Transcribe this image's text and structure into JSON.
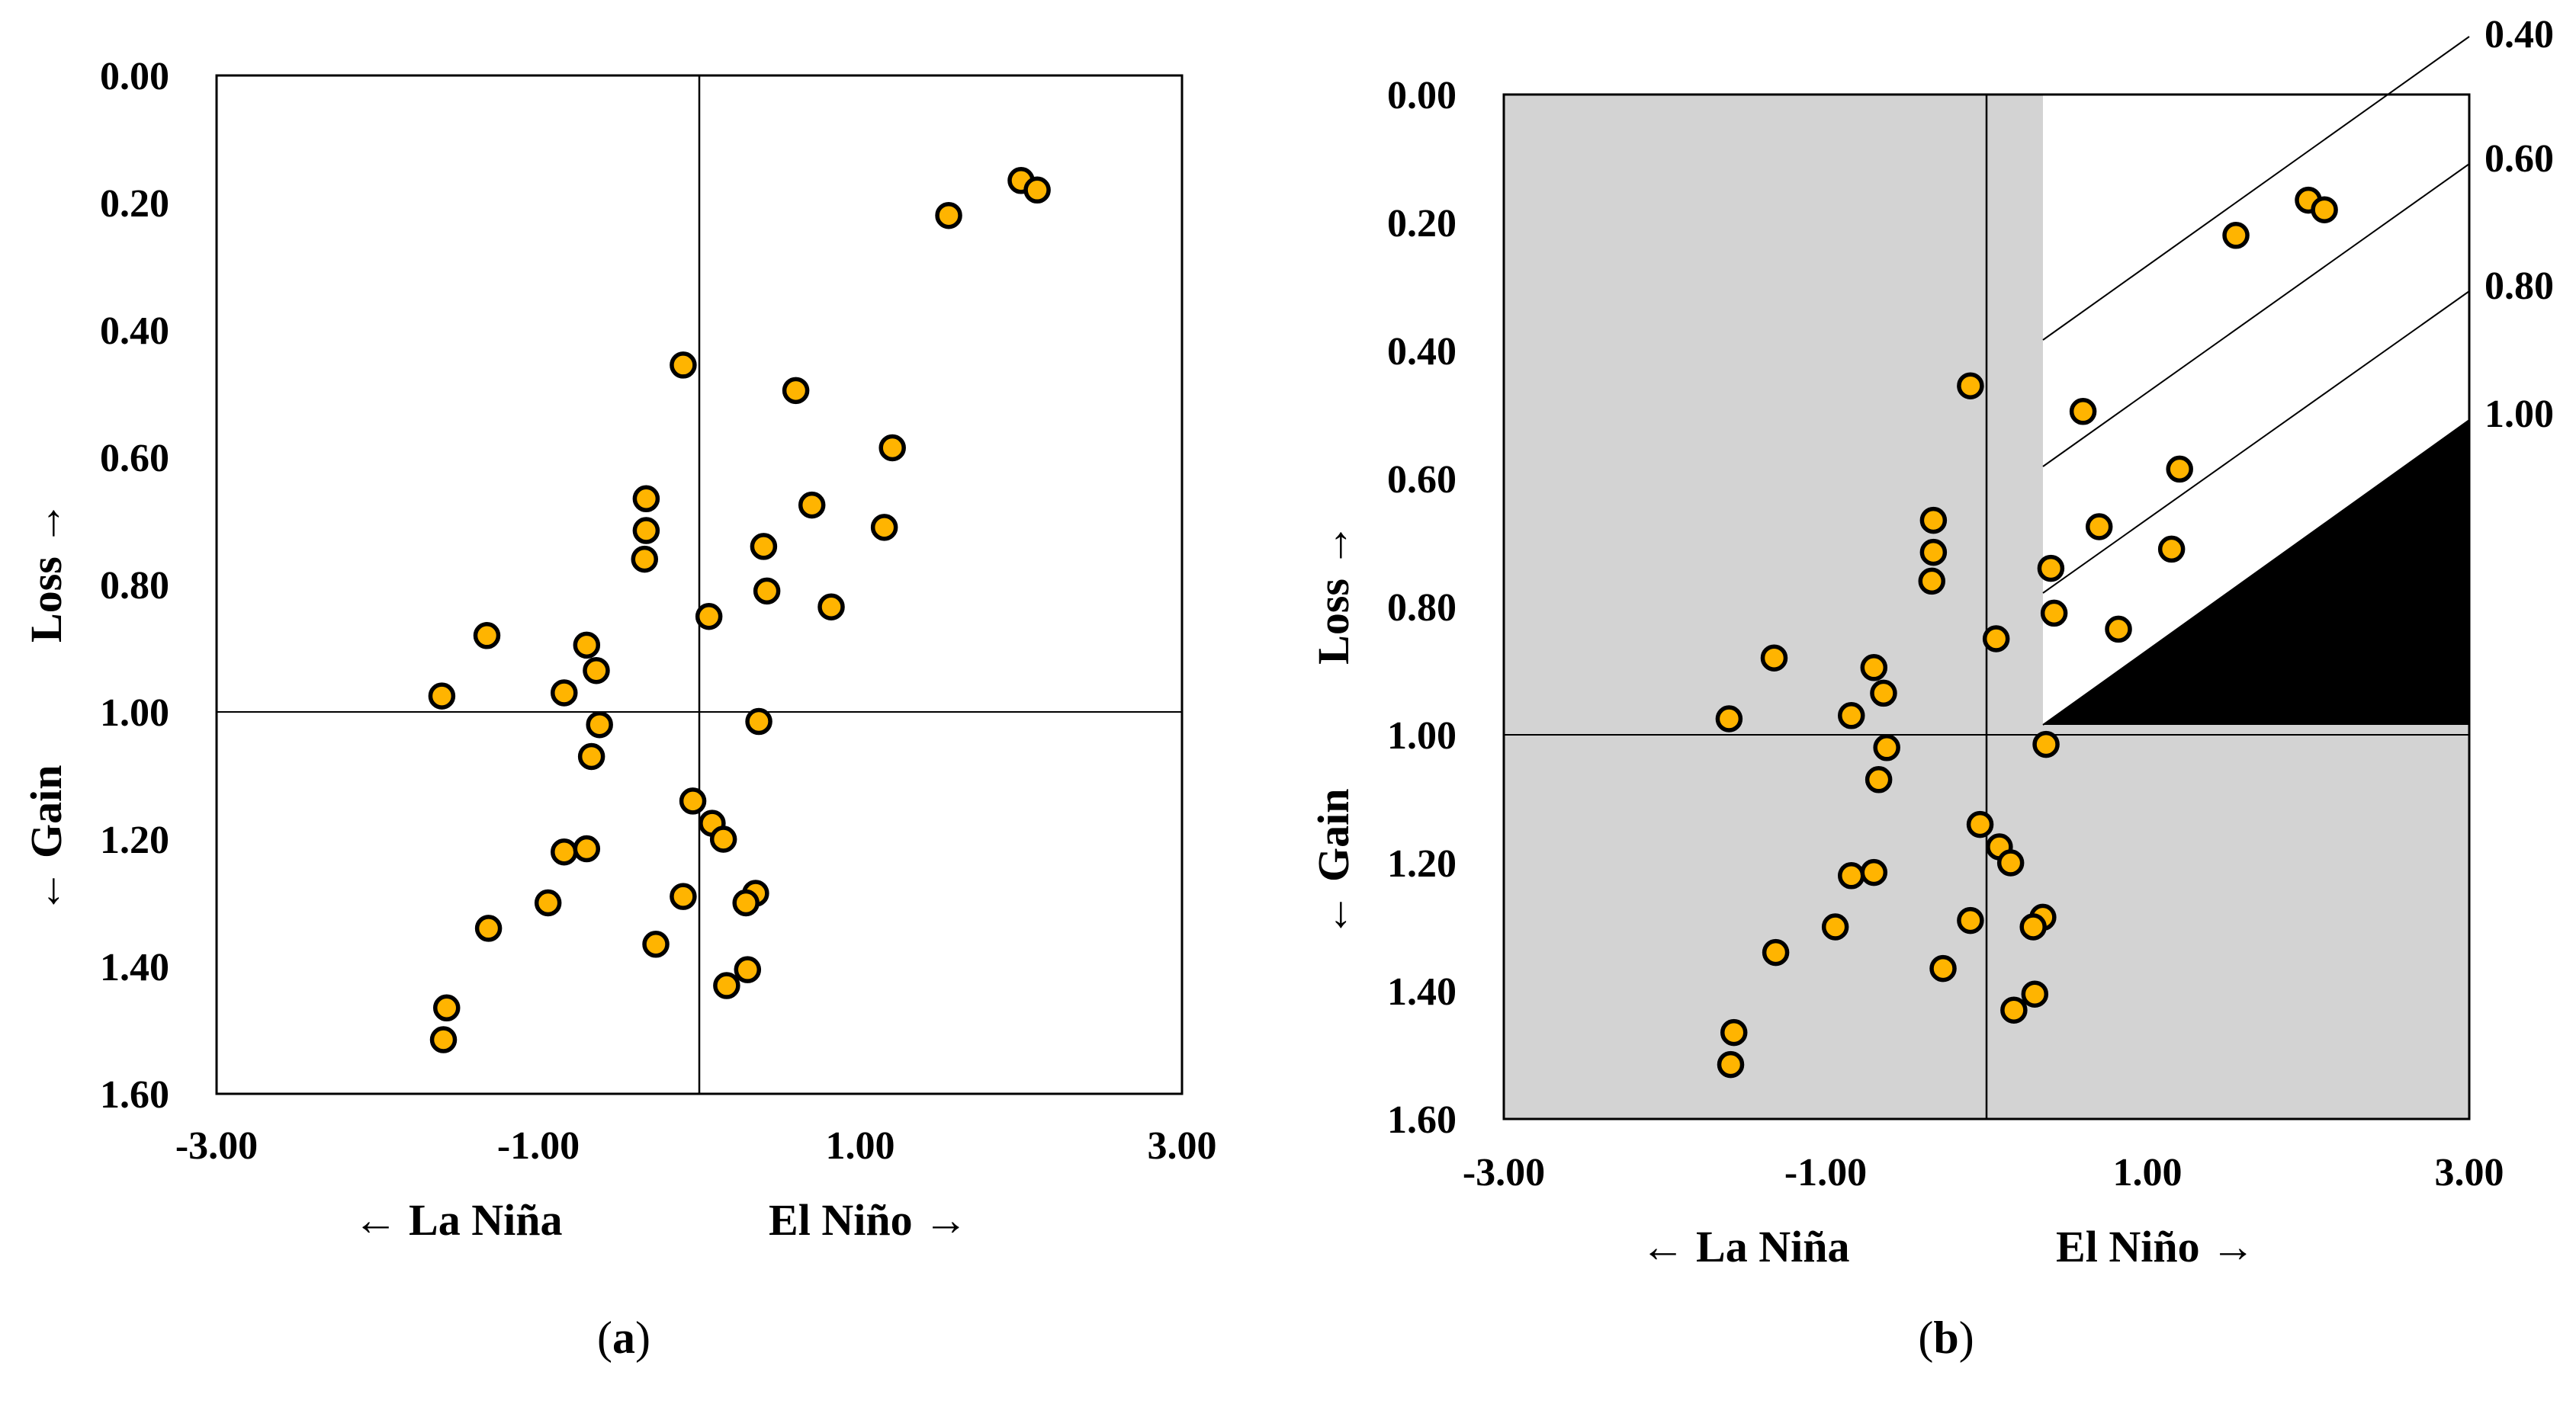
{
  "chart_data": [
    {
      "type": "scatter",
      "panel": "(a)",
      "panel_open": "(",
      "panel_letter": "a",
      "panel_close": ")",
      "xlabel_left": "← La Niña",
      "xlabel_right": "El Niño →",
      "ylabel_loss": "Loss →",
      "ylabel_gain": "← Gain",
      "xlim": [
        -3,
        3
      ],
      "ylim": [
        0,
        1.6
      ],
      "y_reversed": true,
      "xticks": [
        -3,
        -1,
        1,
        3
      ],
      "xtick_labels": [
        "-3.00",
        "-1.00",
        "1.00",
        "3.00"
      ],
      "yticks": [
        0,
        0.2,
        0.4,
        0.6,
        0.8,
        1.0,
        1.2,
        1.4,
        1.6
      ],
      "ytick_labels": [
        "0.00",
        "0.20",
        "0.40",
        "0.60",
        "0.80",
        "1.00",
        "1.20",
        "1.40",
        "1.60"
      ],
      "reference_lines": {
        "x": 0,
        "y": 1.0
      },
      "marker_color": "#FFB400",
      "marker_edge": "#000000",
      "points": [
        [
          2.0,
          0.165
        ],
        [
          2.1,
          0.18
        ],
        [
          1.55,
          0.22
        ],
        [
          0.6,
          0.495
        ],
        [
          -0.1,
          0.455
        ],
        [
          1.2,
          0.585
        ],
        [
          0.7,
          0.675
        ],
        [
          1.15,
          0.71
        ],
        [
          -0.33,
          0.665
        ],
        [
          -0.33,
          0.715
        ],
        [
          0.4,
          0.74
        ],
        [
          -0.34,
          0.76
        ],
        [
          0.42,
          0.81
        ],
        [
          0.82,
          0.835
        ],
        [
          0.06,
          0.85
        ],
        [
          -1.32,
          0.88
        ],
        [
          -0.7,
          0.895
        ],
        [
          -0.64,
          0.935
        ],
        [
          -0.84,
          0.97
        ],
        [
          -1.6,
          0.975
        ],
        [
          -0.62,
          1.02
        ],
        [
          0.37,
          1.015
        ],
        [
          -0.67,
          1.07
        ],
        [
          -0.04,
          1.14
        ],
        [
          0.08,
          1.175
        ],
        [
          0.15,
          1.2
        ],
        [
          -0.84,
          1.22
        ],
        [
          -0.7,
          1.215
        ],
        [
          -0.1,
          1.29
        ],
        [
          -0.94,
          1.3
        ],
        [
          0.35,
          1.285
        ],
        [
          0.29,
          1.3
        ],
        [
          -1.31,
          1.34
        ],
        [
          -0.27,
          1.365
        ],
        [
          0.3,
          1.405
        ],
        [
          0.17,
          1.43
        ],
        [
          -1.57,
          1.465
        ],
        [
          -1.59,
          1.515
        ]
      ]
    },
    {
      "type": "scatter",
      "panel": "(b)",
      "panel_open": "(",
      "panel_letter": "b",
      "panel_close": ")",
      "xlabel_left": "← La Niña",
      "xlabel_right": "El Niño →",
      "ylabel_loss": "Loss →",
      "ylabel_gain": "← Gain",
      "xlim": [
        -3,
        3
      ],
      "ylim": [
        0,
        1.6
      ],
      "y_reversed": true,
      "xticks": [
        -3,
        -1,
        1,
        3
      ],
      "xtick_labels": [
        "-3.00",
        "-1.00",
        "1.00",
        "3.00"
      ],
      "yticks": [
        0,
        0.2,
        0.4,
        0.6,
        0.8,
        1.0,
        1.2,
        1.4,
        1.6
      ],
      "ytick_labels": [
        "0.00",
        "0.20",
        "0.40",
        "0.60",
        "0.80",
        "1.00",
        "1.20",
        "1.40",
        "1.60"
      ],
      "reference_lines": {
        "x": 0,
        "y": 1.0
      },
      "shaded_region": {
        "color": "#D3D3D3",
        "unshaded_x_from": 0.35,
        "unshaded_y_to": 1.0
      },
      "black_region": {
        "color": "#000000",
        "ratio": 1.0
      },
      "ratio_lines": [
        {
          "ratio": 0.4,
          "label": "0.40"
        },
        {
          "ratio": 0.6,
          "label": "0.60"
        },
        {
          "ratio": 0.8,
          "label": "0.80"
        },
        {
          "ratio": 1.0,
          "label": "1.00"
        }
      ],
      "marker_color": "#FFB400",
      "marker_edge": "#000000",
      "points": [
        [
          2.0,
          0.165
        ],
        [
          2.1,
          0.18
        ],
        [
          1.55,
          0.22
        ],
        [
          0.6,
          0.495
        ],
        [
          -0.1,
          0.455
        ],
        [
          1.2,
          0.585
        ],
        [
          0.7,
          0.675
        ],
        [
          1.15,
          0.71
        ],
        [
          -0.33,
          0.665
        ],
        [
          -0.33,
          0.715
        ],
        [
          0.4,
          0.74
        ],
        [
          -0.34,
          0.76
        ],
        [
          0.42,
          0.81
        ],
        [
          0.82,
          0.835
        ],
        [
          0.06,
          0.85
        ],
        [
          -1.32,
          0.88
        ],
        [
          -0.7,
          0.895
        ],
        [
          -0.64,
          0.935
        ],
        [
          -0.84,
          0.97
        ],
        [
          -1.6,
          0.975
        ],
        [
          -0.62,
          1.02
        ],
        [
          0.37,
          1.015
        ],
        [
          -0.67,
          1.07
        ],
        [
          -0.04,
          1.14
        ],
        [
          0.08,
          1.175
        ],
        [
          0.15,
          1.2
        ],
        [
          -0.84,
          1.22
        ],
        [
          -0.7,
          1.215
        ],
        [
          -0.1,
          1.29
        ],
        [
          -0.94,
          1.3
        ],
        [
          0.35,
          1.285
        ],
        [
          0.29,
          1.3
        ],
        [
          -1.31,
          1.34
        ],
        [
          -0.27,
          1.365
        ],
        [
          0.3,
          1.405
        ],
        [
          0.17,
          1.43
        ],
        [
          -1.57,
          1.465
        ],
        [
          -1.59,
          1.515
        ]
      ]
    }
  ]
}
